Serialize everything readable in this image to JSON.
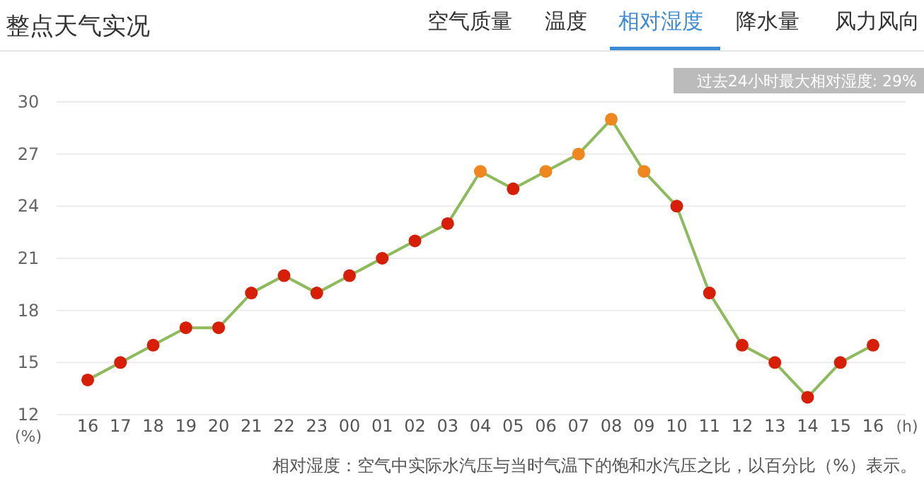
{
  "chart_data": {
    "type": "line",
    "title": "整点天气实况",
    "categories": [
      "16",
      "17",
      "18",
      "19",
      "20",
      "21",
      "22",
      "23",
      "00",
      "01",
      "02",
      "03",
      "04",
      "05",
      "06",
      "07",
      "08",
      "09",
      "10",
      "11",
      "12",
      "13",
      "14",
      "15",
      "16"
    ],
    "series": [
      {
        "color": "#8dba5a",
        "marker": "circle",
        "values": [
          14,
          15,
          16,
          17,
          17,
          19,
          20,
          19,
          20,
          21,
          22,
          23,
          26,
          25,
          26,
          27,
          29,
          26,
          24,
          19,
          16,
          15,
          13,
          15,
          16
        ],
        "colors": [
          "#d81e06",
          "#d81e06",
          "#d81e06",
          "#d81e06",
          "#d81e06",
          "#d81e06",
          "#d81e06",
          "#d81e06",
          "#d81e06",
          "#d81e06",
          "#d81e06",
          "#d81e06",
          "#f0861e",
          "#d81e06",
          "#f0861e",
          "#f0861e",
          "#f0861e",
          "#f0861e",
          "#d81e06",
          "#d81e06",
          "#d81e06",
          "#d81e06",
          "#d81e06",
          "#d81e06",
          "#d81e06"
        ]
      }
    ],
    "ylim": [
      12,
      30
    ],
    "yticks": [
      12,
      15,
      18,
      21,
      24,
      27,
      30
    ],
    "grid": "y",
    "xlabel": "(h)",
    "ylabel": "(%)",
    "annotations": [
      "空气质量",
      "温度",
      "相对湿度",
      "降水量",
      "风力风向",
      "过去24小时最大相对湿度: 29%",
      "相对湿度：空气中实际水汽压与当时气温下的饱和水汽压之比，以百分比（%）表示。"
    ]
  }
}
